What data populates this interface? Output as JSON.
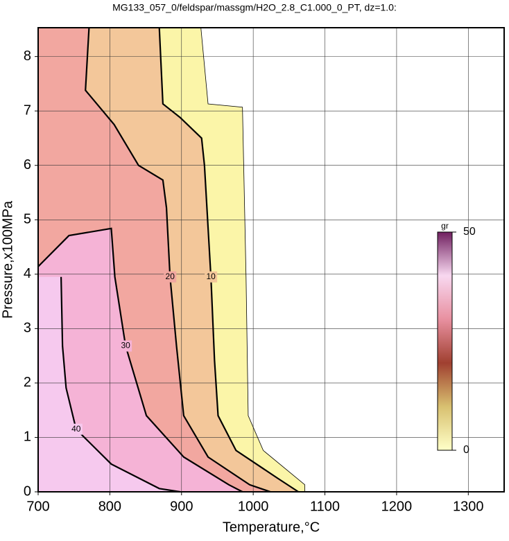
{
  "chart_data": {
    "type": "contour",
    "title": "MG133_057_0/feldspar/massgm/H2O_2.8_C1.000_0_PT, dz=1.0:",
    "xlabel": "Temperature,°C",
    "ylabel": "Pressure,x100MPa",
    "xlim": [
      700,
      1350
    ],
    "ylim": [
      0,
      8.53
    ],
    "xticks": [
      700,
      800,
      900,
      1000,
      1100,
      1200,
      1300
    ],
    "yticks": [
      0,
      1,
      2,
      3,
      4,
      5,
      6,
      7,
      8
    ],
    "grid": true,
    "contours": [
      {
        "level": 0,
        "fill": "#fbf5a8",
        "x": [
          927,
          937,
          985,
          990,
          993,
          1014,
          1072,
          1072
        ],
        "y": [
          8.53,
          7.13,
          7.07,
          3.95,
          1.4,
          0.76,
          0.13,
          0
        ]
      },
      {
        "level": 10,
        "fill": "#f3c79a",
        "x": [
          869,
          874,
          898,
          928,
          932,
          941,
          946,
          951,
          976,
          1034,
          1063
        ],
        "y": [
          8.53,
          7.13,
          6.88,
          6.5,
          6.0,
          3.95,
          2.42,
          1.4,
          0.76,
          0.25,
          0
        ]
      },
      {
        "level": 20,
        "fill": "#f2a7a0",
        "x": [
          771,
          766,
          806,
          840,
          874,
          879,
          884,
          893,
          903,
          937,
          995,
          1024
        ],
        "y": [
          8.53,
          7.38,
          6.75,
          6.0,
          5.73,
          5.22,
          3.95,
          2.68,
          1.4,
          0.64,
          0.13,
          0
        ]
      },
      {
        "level": 30,
        "fill": "#f5b3d6",
        "x": [
          700,
          743,
          802,
          807,
          822,
          851,
          903,
          966,
          985
        ],
        "y": [
          4.14,
          4.71,
          4.84,
          3.95,
          2.68,
          1.4,
          0.64,
          0.13,
          0
        ]
      },
      {
        "level": 40,
        "fill": "#f6c9ee",
        "x": [
          732,
          734,
          739,
          753,
          802,
          869,
          898
        ],
        "y": [
          3.95,
          2.68,
          1.91,
          1.15,
          0.51,
          0.06,
          0
        ]
      }
    ],
    "colorbar": {
      "label": "gr",
      "lim": [
        0,
        50
      ],
      "ticks": [
        0,
        50
      ],
      "colors": [
        "#ffffc8",
        "#d8c070",
        "#a04030",
        "#e890a0",
        "#f8d8f0",
        "#702060"
      ]
    }
  }
}
